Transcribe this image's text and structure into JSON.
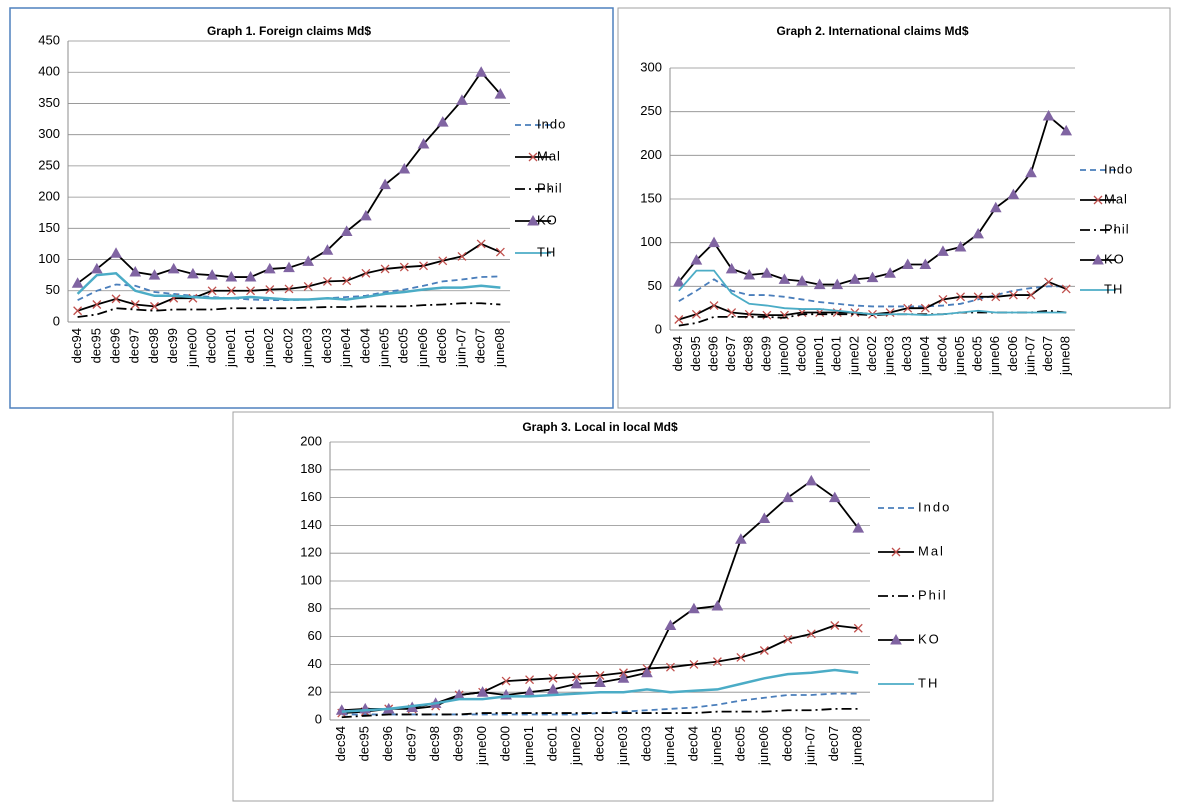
{
  "chart_data": [
    {
      "type": "line",
      "title": "Graph 1. Foreign claims Md$",
      "categories": [
        "dec94",
        "dec95",
        "dec96",
        "dec97",
        "dec98",
        "dec99",
        "june00",
        "dec00",
        "june01",
        "dec01",
        "june02",
        "dec02",
        "june03",
        "dec03",
        "june04",
        "dec04",
        "june05",
        "dec05",
        "june06",
        "dec06",
        "juin-07",
        "dec07",
        "june08"
      ],
      "ylim": [
        0,
        450
      ],
      "yticks": [
        0,
        50,
        100,
        150,
        200,
        250,
        300,
        350,
        400,
        450
      ],
      "grid": true,
      "legend": "right",
      "series": [
        {
          "name": "Indo",
          "color": "#4a7ebb",
          "line_style": "dashed",
          "values": [
            35,
            50,
            60,
            58,
            48,
            45,
            42,
            40,
            38,
            36,
            35,
            35,
            36,
            38,
            40,
            42,
            48,
            52,
            58,
            65,
            68,
            72,
            73
          ]
        },
        {
          "name": "Mal",
          "color": "#000000",
          "line_style": "solid",
          "marker": "x",
          "marker_color": "#c0504d",
          "values": [
            18,
            28,
            37,
            28,
            25,
            38,
            38,
            50,
            50,
            50,
            52,
            53,
            57,
            65,
            66,
            78,
            85,
            88,
            90,
            98,
            105,
            125,
            112
          ]
        },
        {
          "name": "Phil",
          "color": "#000000",
          "line_style": "dashdot",
          "values": [
            8,
            12,
            22,
            20,
            18,
            20,
            20,
            20,
            22,
            22,
            22,
            22,
            23,
            24,
            24,
            25,
            25,
            25,
            27,
            28,
            30,
            30,
            28
          ]
        },
        {
          "name": "KO",
          "color": "#000000",
          "line_style": "solid",
          "marker": "triangle",
          "marker_color": "#8064a2",
          "values": [
            62,
            85,
            110,
            80,
            75,
            85,
            77,
            75,
            72,
            72,
            85,
            87,
            97,
            115,
            145,
            170,
            220,
            245,
            285,
            320,
            355,
            400,
            365
          ]
        },
        {
          "name": "TH",
          "color": "#4bacc6",
          "line_style": "solid",
          "values": [
            45,
            75,
            78,
            50,
            42,
            42,
            40,
            38,
            38,
            40,
            38,
            36,
            36,
            38,
            36,
            40,
            45,
            48,
            52,
            55,
            55,
            58,
            55
          ]
        }
      ]
    },
    {
      "type": "line",
      "title": "Graph 2. International claims Md$",
      "categories": [
        "dec94",
        "dec95",
        "dec96",
        "dec97",
        "dec98",
        "dec99",
        "june00",
        "dec00",
        "june01",
        "dec01",
        "june02",
        "dec02",
        "june03",
        "dec03",
        "june04",
        "dec04",
        "june05",
        "dec05",
        "june06",
        "dec06",
        "juin-07",
        "dec07",
        "june08"
      ],
      "ylim": [
        0,
        300
      ],
      "yticks": [
        0,
        50,
        100,
        150,
        200,
        250,
        300
      ],
      "grid": true,
      "legend": "right",
      "series": [
        {
          "name": "Indo",
          "color": "#4a7ebb",
          "line_style": "dashed",
          "values": [
            33,
            45,
            58,
            45,
            40,
            40,
            38,
            35,
            32,
            30,
            28,
            27,
            27,
            27,
            27,
            28,
            30,
            35,
            40,
            45,
            48,
            50,
            50
          ]
        },
        {
          "name": "Mal",
          "color": "#000000",
          "line_style": "solid",
          "marker": "x",
          "marker_color": "#c0504d",
          "values": [
            12,
            18,
            28,
            20,
            18,
            17,
            17,
            20,
            20,
            20,
            20,
            18,
            20,
            25,
            25,
            35,
            38,
            38,
            38,
            40,
            40,
            55,
            47
          ]
        },
        {
          "name": "Phil",
          "color": "#000000",
          "line_style": "dashdot",
          "values": [
            5,
            8,
            15,
            15,
            15,
            15,
            14,
            18,
            18,
            18,
            18,
            17,
            18,
            18,
            18,
            18,
            20,
            20,
            20,
            20,
            20,
            22,
            20
          ]
        },
        {
          "name": "KO",
          "color": "#000000",
          "line_style": "solid",
          "marker": "triangle",
          "marker_color": "#8064a2",
          "values": [
            55,
            80,
            100,
            70,
            63,
            65,
            58,
            56,
            52,
            52,
            58,
            60,
            65,
            75,
            75,
            90,
            95,
            110,
            140,
            155,
            180,
            245,
            228
          ]
        },
        {
          "name": "TH",
          "color": "#4bacc6",
          "line_style": "solid",
          "values": [
            45,
            68,
            68,
            42,
            30,
            28,
            25,
            24,
            24,
            22,
            20,
            18,
            18,
            18,
            17,
            18,
            20,
            22,
            20,
            20,
            20,
            20,
            20
          ]
        }
      ]
    },
    {
      "type": "line",
      "title": "Graph 3. Local in local Md$",
      "categories": [
        "dec94",
        "dec95",
        "dec96",
        "dec97",
        "dec98",
        "dec99",
        "june00",
        "dec00",
        "june01",
        "dec01",
        "june02",
        "dec02",
        "june03",
        "dec03",
        "june04",
        "dec04",
        "june05",
        "dec05",
        "june06",
        "dec06",
        "juin-07",
        "dec07",
        "june08"
      ],
      "ylim": [
        0,
        200
      ],
      "yticks": [
        0,
        20,
        40,
        60,
        80,
        100,
        120,
        140,
        160,
        180,
        200
      ],
      "grid": true,
      "legend": "right",
      "series": [
        {
          "name": "Indo",
          "color": "#4a7ebb",
          "line_style": "dashed",
          "values": [
            4,
            4,
            4,
            4,
            4,
            4,
            4,
            4,
            4,
            4,
            4,
            5,
            6,
            7,
            8,
            9,
            11,
            14,
            16,
            18,
            18,
            19,
            19
          ]
        },
        {
          "name": "Mal",
          "color": "#000000",
          "line_style": "solid",
          "marker": "x",
          "marker_color": "#c0504d",
          "values": [
            5,
            6,
            8,
            8,
            10,
            18,
            20,
            28,
            29,
            30,
            31,
            32,
            34,
            37,
            38,
            40,
            42,
            45,
            50,
            58,
            62,
            68,
            66
          ]
        },
        {
          "name": "Phil",
          "color": "#000000",
          "line_style": "dashdot",
          "values": [
            2,
            3,
            4,
            4,
            4,
            4,
            5,
            5,
            5,
            5,
            5,
            5,
            5,
            5,
            5,
            5,
            6,
            6,
            6,
            7,
            7,
            8,
            8
          ]
        },
        {
          "name": "KO",
          "color": "#000000",
          "line_style": "solid",
          "marker": "triangle",
          "marker_color": "#8064a2",
          "values": [
            7,
            8,
            8,
            9,
            12,
            18,
            20,
            18,
            20,
            22,
            26,
            27,
            30,
            34,
            68,
            80,
            82,
            130,
            145,
            160,
            172,
            160,
            138
          ]
        },
        {
          "name": "TH",
          "color": "#4bacc6",
          "line_style": "solid",
          "values": [
            6,
            7,
            8,
            10,
            12,
            15,
            15,
            17,
            17,
            18,
            19,
            20,
            20,
            22,
            20,
            21,
            22,
            26,
            30,
            33,
            34,
            36,
            34
          ]
        }
      ]
    }
  ]
}
